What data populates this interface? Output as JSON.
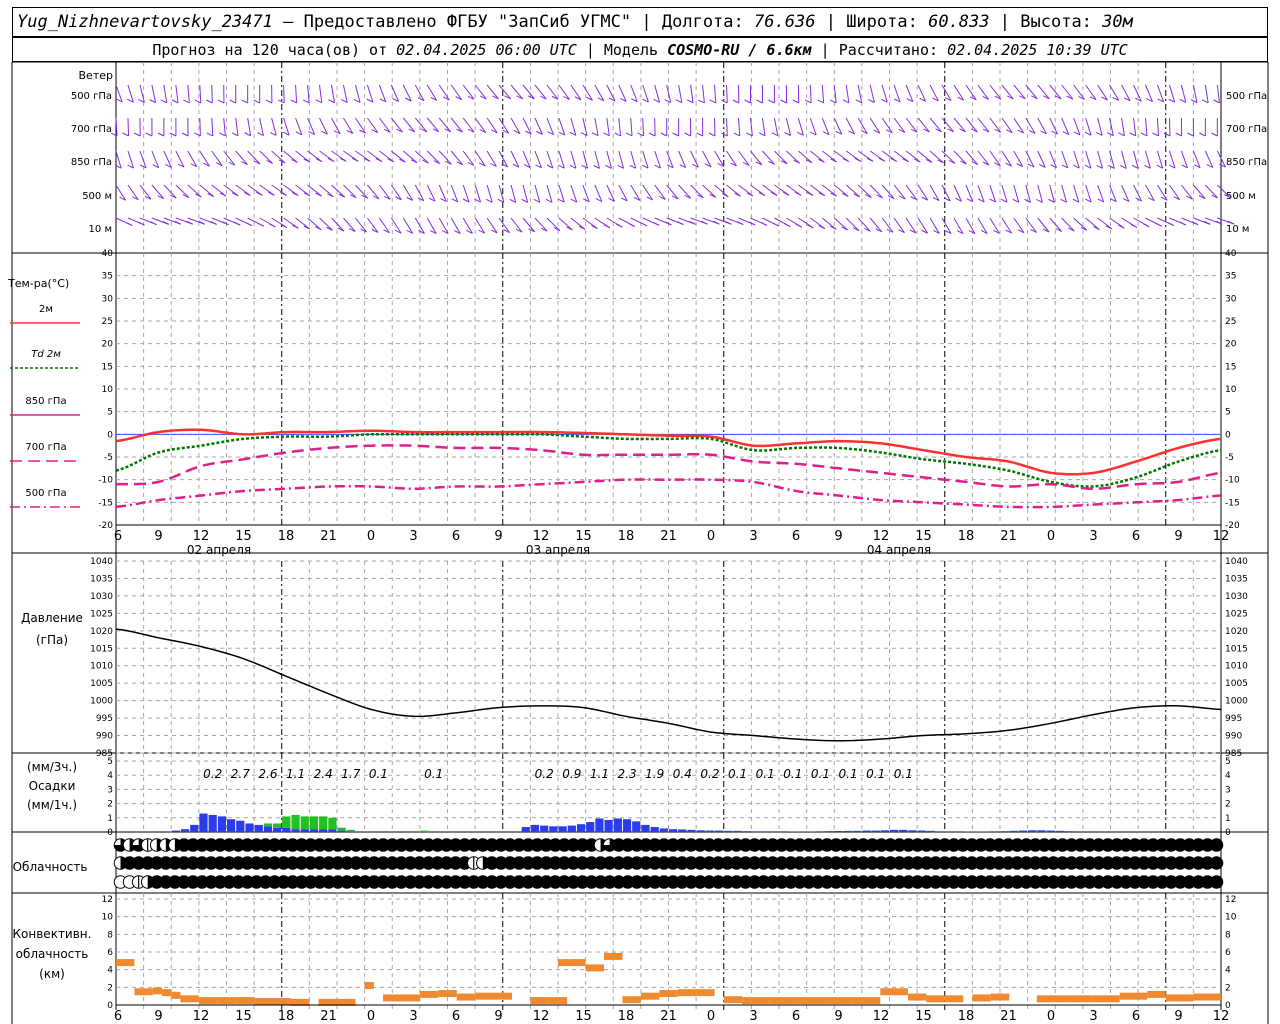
{
  "header": {
    "station": "Yug_Nizhnevartovsky_23471",
    "provider": "– Предоставлено ФГБУ \"ЗапСиб УГМС\"",
    "lon_label": "Долгота:",
    "lon": "76.636",
    "lat_label": "Широта:",
    "lat": "60.833",
    "alt_label": "Высота:",
    "alt": "30м",
    "forecast_label": "Прогноз на 120 часа(ов) от",
    "forecast_start": "02.04.2025 06:00 UTC",
    "model_label": "Модель",
    "model": "COSMO-RU / 6.6км",
    "calc_label": "Рассчитано:",
    "calc_time": "02.04.2025 10:39 UTC"
  },
  "labels": {
    "wind": "Ветер",
    "temp": "Тем-ра(°С)",
    "pressure": "Давление",
    "pressure_unit": "(гПа)",
    "precip_3h": "(мм/3ч.)",
    "precip": "Осадки",
    "precip_1h": "(мм/1ч.)",
    "cloud": "Облачность",
    "conv1": "Конвективн.",
    "conv2": "облачность",
    "conv3": "(км)"
  },
  "colors": {
    "wind": "#8a2be2",
    "t2m": "#ff3030",
    "td2m": "#007800",
    "t850": "#e0208a",
    "t700": "#e0208a",
    "t500": "#e0208a",
    "pressure": "#000000",
    "rain": "#2a3de8",
    "snow": "#22c022",
    "conv": "#f08a30",
    "grid": "#a8a8a8"
  },
  "chart_data": {
    "time_axis": {
      "hours_labels": [
        "6",
        "9",
        "12",
        "15",
        "18",
        "21",
        "0",
        "3",
        "6",
        "9",
        "12",
        "15",
        "18",
        "21",
        "0",
        "3",
        "6",
        "9",
        "12",
        "15",
        "18",
        "21",
        "0",
        "3",
        "6",
        "9",
        "12"
      ],
      "dates": [
        "02 апреля",
        "03 апреля",
        "04 апреля"
      ]
    },
    "wind": {
      "levels": [
        "500 гПа",
        "700 гПа",
        "850 гПа",
        "500 м",
        "10 м"
      ]
    },
    "temperature": {
      "type": "line",
      "ylim": [
        -20,
        40
      ],
      "yticks": [
        -20,
        -15,
        -10,
        -5,
        0,
        5,
        10,
        15,
        20,
        25,
        30,
        35,
        40
      ],
      "legend": [
        "2м",
        "Td 2м",
        "850 гПа",
        "700 гПа",
        "500 гПа"
      ],
      "series": [
        {
          "name": "2м",
          "values": [
            -1.5,
            0.5,
            1,
            0,
            0.5,
            0.5,
            0.8,
            0.5,
            0.5,
            0.5,
            0.5,
            0.3,
            0,
            -0.3,
            -0.5,
            -2.5,
            -2,
            -1.5,
            -2,
            -3.5,
            -5,
            -6,
            -8.5,
            -8.5,
            -6,
            -3,
            -1
          ]
        },
        {
          "name": "Td 2м",
          "values": [
            -8,
            -4,
            -2.5,
            -1,
            -0.5,
            -0.5,
            0,
            0,
            0,
            0,
            0,
            -0.5,
            -1,
            -1,
            -1,
            -3.5,
            -3,
            -3,
            -4,
            -5.5,
            -6.5,
            -8,
            -10.5,
            -11.5,
            -9.5,
            -6,
            -3.5
          ]
        },
        {
          "name": "850 гПа",
          "values": [
            -11,
            -10.5,
            -7,
            -5.5,
            -4,
            -3,
            -2.5,
            -2.5,
            -3,
            -3,
            -3.5,
            -4.5,
            -4.5,
            -4.5,
            -4.5,
            -6,
            -6.5,
            -7.5,
            -8.5,
            -9.5,
            -10.5,
            -11.5,
            -11,
            -12,
            -11,
            -10.5,
            -8.5
          ]
        },
        {
          "name": "700 гПа",
          "values": [
            -11,
            -10.5,
            -7,
            -5.5,
            -4,
            -3,
            -2.5,
            -2.5,
            -3,
            -3,
            -3.5,
            -4.5,
            -4.5,
            -4.5,
            -4.5,
            -6,
            -6.5,
            -7.5,
            -8.5,
            -9.5,
            -10.5,
            -11.5,
            -11,
            -12,
            -11,
            -10.5,
            -8.5
          ]
        },
        {
          "name": "500 гПа",
          "values": [
            -16,
            -14.5,
            -13.5,
            -12.5,
            -12,
            -11.5,
            -11.5,
            -12,
            -11.5,
            -11.5,
            -11,
            -10.5,
            -10,
            -10,
            -10,
            -10.5,
            -12.5,
            -13.5,
            -14.5,
            -15,
            -15.5,
            -16,
            -16,
            -15.5,
            -15,
            -14.5,
            -13.5
          ]
        }
      ]
    },
    "pressure": {
      "type": "line",
      "ylim": [
        985,
        1040
      ],
      "yticks": [
        985,
        990,
        995,
        1000,
        1005,
        1010,
        1015,
        1020,
        1025,
        1030,
        1035,
        1040
      ],
      "values": [
        1020.5,
        1018,
        1015.5,
        1012,
        1007,
        1002,
        997.5,
        995.5,
        996.5,
        998,
        998.5,
        998,
        995.5,
        993.5,
        991,
        990,
        989,
        988.5,
        989,
        990,
        990.5,
        991.5,
        993.5,
        996,
        998,
        998.5,
        997.5
      ]
    },
    "precip": {
      "type": "bar",
      "ylim": [
        0,
        5
      ],
      "yticks": [
        0,
        1,
        2,
        3,
        4,
        5
      ],
      "totals_3h": [
        "0.2",
        "2.7",
        "2.6",
        "1.1",
        "2.4",
        "1.7",
        "0.1",
        "0.1",
        "0.2",
        "0.9",
        "1.1",
        "2.3",
        "1.9",
        "0.4",
        "0.2",
        "0.1",
        "0.1",
        "0.1",
        "0.1",
        "0.1",
        "0.1",
        "0.1"
      ],
      "totals_hours": [
        12,
        15,
        18,
        21,
        24,
        27,
        30,
        36,
        48,
        51,
        54,
        57,
        60,
        63,
        66,
        69,
        72,
        75,
        78,
        81,
        84,
        87
      ],
      "rain_hourly": [
        0,
        0,
        0,
        0,
        0,
        0,
        0.1,
        0.2,
        0.5,
        1.3,
        1.2,
        1.1,
        0.9,
        0.8,
        0.6,
        0.5,
        0.4,
        0.3,
        0.3,
        0.2,
        0.2,
        0.2,
        0.2,
        0.2,
        0.1,
        0.05,
        0,
        0,
        0,
        0.05,
        0,
        0,
        0,
        0,
        0,
        0,
        0,
        0,
        0,
        0,
        0,
        0,
        0,
        0,
        0.35,
        0.5,
        0.45,
        0.4,
        0.4,
        0.45,
        0.55,
        0.7,
        0.95,
        0.85,
        0.95,
        0.9,
        0.75,
        0.5,
        0.35,
        0.25,
        0.2,
        0.18,
        0.15,
        0.12,
        0.1,
        0.1,
        0.08,
        0.08,
        0.06,
        0.05,
        0.05,
        0.05,
        0.05,
        0.04,
        0.04,
        0.04,
        0.05,
        0.06,
        0.07,
        0.08,
        0.08,
        0.1,
        0.1,
        0.12,
        0.15,
        0.15,
        0.12,
        0.1,
        0.08,
        0.05,
        0.05,
        0.05,
        0.04,
        0.04,
        0.04,
        0.05,
        0.06,
        0.08,
        0.1,
        0.12,
        0.12,
        0.1,
        0.08,
        0.06,
        0.05,
        0.05
      ],
      "snow_hourly": [
        0,
        0,
        0,
        0,
        0,
        0,
        0,
        0,
        0,
        0,
        0,
        0,
        0,
        0,
        0,
        0,
        0.2,
        0.3,
        0.8,
        1,
        0.9,
        0.9,
        0.9,
        0.8,
        0.2,
        0.1,
        0,
        0,
        0,
        0,
        0,
        0,
        0,
        0.1,
        0,
        0,
        0,
        0,
        0,
        0,
        0,
        0,
        0,
        0,
        0,
        0,
        0,
        0,
        0,
        0,
        0,
        0,
        0,
        0,
        0,
        0,
        0,
        0,
        0,
        0,
        0,
        0,
        0,
        0,
        0,
        0,
        0,
        0,
        0,
        0,
        0,
        0,
        0,
        0,
        0,
        0,
        0,
        0,
        0,
        0,
        0,
        0,
        0,
        0,
        0,
        0,
        0,
        0,
        0,
        0,
        0,
        0,
        0,
        0,
        0,
        0,
        0,
        0,
        0,
        0,
        0,
        0,
        0,
        0,
        0
      ]
    },
    "cloud": {
      "type": "table",
      "rows": [
        [
          3,
          2,
          3,
          1,
          2,
          2,
          2,
          4,
          4,
          4,
          4,
          4,
          4,
          4,
          4,
          4,
          4,
          4,
          4,
          4,
          4,
          4,
          4,
          4,
          4,
          4,
          4,
          4,
          4,
          4,
          4,
          4,
          4,
          4,
          4,
          4,
          4,
          4,
          4,
          4,
          4,
          4,
          4,
          4,
          4,
          4,
          4,
          4,
          4,
          4,
          4,
          4,
          4,
          2,
          3,
          4,
          4,
          4,
          4,
          4,
          4,
          4,
          4,
          4,
          4,
          4,
          4,
          4,
          4,
          4,
          4,
          4,
          4,
          4,
          4,
          4,
          4,
          4,
          4,
          4,
          4,
          4,
          4,
          4,
          4,
          4,
          4,
          4,
          4,
          4,
          4,
          4,
          4,
          4,
          4,
          4,
          4,
          4,
          4,
          4,
          4,
          4,
          4,
          4,
          4,
          4,
          4,
          4,
          4,
          4,
          4,
          4,
          4,
          4,
          4,
          4,
          4,
          4,
          4,
          4,
          4,
          4
        ],
        [
          2,
          4,
          4,
          4,
          4,
          4,
          4,
          4,
          4,
          4,
          4,
          4,
          4,
          4,
          4,
          4,
          4,
          4,
          4,
          4,
          4,
          4,
          4,
          4,
          4,
          4,
          4,
          4,
          4,
          4,
          4,
          4,
          4,
          4,
          4,
          4,
          4,
          4,
          4,
          1,
          2,
          4,
          4,
          4,
          4,
          4,
          4,
          4,
          4,
          4,
          4,
          4,
          4,
          4,
          4,
          4,
          4,
          4,
          4,
          4,
          4,
          4,
          4,
          4,
          4,
          4,
          4,
          4,
          4,
          4,
          4,
          4,
          4,
          4,
          4,
          4,
          4,
          4,
          4,
          4,
          4,
          4,
          4,
          4,
          4,
          4,
          4,
          4,
          4,
          4,
          4,
          4,
          4,
          4,
          4,
          4,
          4,
          4,
          4,
          4,
          4,
          4,
          4,
          4,
          4,
          4,
          4,
          4,
          4,
          4,
          4,
          4,
          4,
          4,
          4,
          4,
          4,
          4,
          4,
          4,
          4,
          4
        ],
        [
          0,
          0,
          1,
          2,
          4,
          4,
          4,
          4,
          4,
          4,
          4,
          4,
          4,
          4,
          4,
          4,
          4,
          4,
          4,
          4,
          4,
          4,
          4,
          4,
          4,
          4,
          4,
          4,
          4,
          4,
          4,
          4,
          4,
          4,
          4,
          4,
          4,
          4,
          4,
          4,
          4,
          4,
          4,
          4,
          4,
          4,
          4,
          4,
          4,
          4,
          4,
          4,
          4,
          4,
          4,
          4,
          4,
          4,
          4,
          4,
          4,
          4,
          4,
          4,
          4,
          4,
          4,
          4,
          4,
          4,
          4,
          4,
          4,
          4,
          4,
          4,
          4,
          4,
          4,
          4,
          4,
          4,
          4,
          4,
          4,
          4,
          4,
          4,
          4,
          4,
          4,
          4,
          4,
          4,
          4,
          4,
          4,
          4,
          4,
          4,
          4,
          4,
          4,
          4,
          4,
          4,
          4,
          4,
          4,
          4,
          4,
          4,
          4,
          4,
          4,
          4,
          4,
          4,
          4,
          4,
          4,
          4
        ]
      ]
    },
    "convective": {
      "type": "bar",
      "ylim": [
        0,
        12
      ],
      "yticks": [
        0,
        2,
        4,
        6,
        8,
        10,
        12
      ],
      "segments": [
        [
          0,
          2,
          4.8
        ],
        [
          2,
          4,
          1.5
        ],
        [
          4,
          5,
          1.6
        ],
        [
          5,
          6,
          1.4
        ],
        [
          6,
          7,
          1.1
        ],
        [
          7,
          8,
          0.7
        ],
        [
          8,
          9,
          0.7
        ],
        [
          9,
          11,
          0.5
        ],
        [
          11,
          13,
          0.5
        ],
        [
          13,
          15,
          0.5
        ],
        [
          15,
          17,
          0.4
        ],
        [
          17,
          19,
          0.4
        ],
        [
          19,
          21,
          0.3
        ],
        [
          22,
          24,
          0.3
        ],
        [
          24,
          26,
          0.3
        ],
        [
          27,
          28,
          2.2
        ],
        [
          29,
          31,
          0.8
        ],
        [
          31,
          33,
          0.8
        ],
        [
          33,
          35,
          1.2
        ],
        [
          35,
          37,
          1.3
        ],
        [
          37,
          39,
          0.9
        ],
        [
          39,
          41,
          1
        ],
        [
          41,
          43,
          1
        ],
        [
          45,
          47,
          0.5
        ],
        [
          47,
          49,
          0.5
        ],
        [
          48,
          51,
          4.8
        ],
        [
          51,
          53,
          4.2
        ],
        [
          53,
          55,
          5.5
        ],
        [
          55,
          57,
          0.6
        ],
        [
          57,
          59,
          1
        ],
        [
          59,
          61,
          1.3
        ],
        [
          61,
          63,
          1.4
        ],
        [
          63,
          65,
          1.4
        ],
        [
          66,
          68,
          0.6
        ],
        [
          68,
          71,
          0.5
        ],
        [
          71,
          74,
          0.5
        ],
        [
          74,
          77,
          0.5
        ],
        [
          77,
          80,
          0.5
        ],
        [
          80,
          83,
          0.5
        ],
        [
          83,
          86,
          1.5
        ],
        [
          86,
          88,
          0.9
        ],
        [
          88,
          90,
          0.7
        ],
        [
          90,
          92,
          0.7
        ],
        [
          93,
          95,
          0.8
        ],
        [
          95,
          97,
          0.9
        ],
        [
          100,
          103,
          0.7
        ],
        [
          103,
          106,
          0.7
        ],
        [
          106,
          109,
          0.7
        ],
        [
          109,
          112,
          1
        ],
        [
          112,
          114,
          1.2
        ],
        [
          114,
          117,
          0.8
        ],
        [
          117,
          120,
          0.9
        ]
      ]
    }
  }
}
